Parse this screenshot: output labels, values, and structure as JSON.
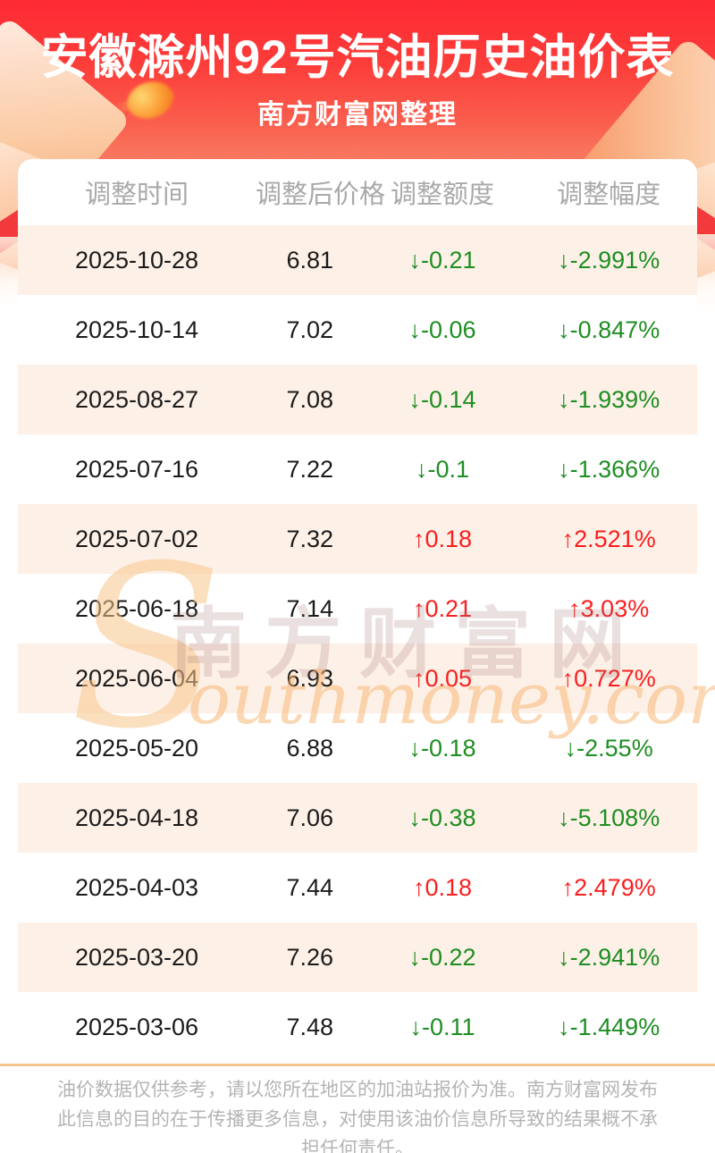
{
  "banner": {
    "title": "安徽滁州92号汽油历史油价表",
    "subtitle": "南方财富网整理"
  },
  "table": {
    "columns": [
      "调整时间",
      "调整后价格",
      "调整额度",
      "调整幅度"
    ],
    "rows": [
      {
        "date": "2025-10-28",
        "price": "6.81",
        "change": "↓-0.21",
        "percent": "↓-2.991%",
        "direction": "down"
      },
      {
        "date": "2025-10-14",
        "price": "7.02",
        "change": "↓-0.06",
        "percent": "↓-0.847%",
        "direction": "down"
      },
      {
        "date": "2025-08-27",
        "price": "7.08",
        "change": "↓-0.14",
        "percent": "↓-1.939%",
        "direction": "down"
      },
      {
        "date": "2025-07-16",
        "price": "7.22",
        "change": "↓-0.1",
        "percent": "↓-1.366%",
        "direction": "down"
      },
      {
        "date": "2025-07-02",
        "price": "7.32",
        "change": "↑0.18",
        "percent": "↑2.521%",
        "direction": "up"
      },
      {
        "date": "2025-06-18",
        "price": "7.14",
        "change": "↑0.21",
        "percent": "↑3.03%",
        "direction": "up"
      },
      {
        "date": "2025-06-04",
        "price": "6.93",
        "change": "↑0.05",
        "percent": "↑0.727%",
        "direction": "up"
      },
      {
        "date": "2025-05-20",
        "price": "6.88",
        "change": "↓-0.18",
        "percent": "↓-2.55%",
        "direction": "down"
      },
      {
        "date": "2025-04-18",
        "price": "7.06",
        "change": "↓-0.38",
        "percent": "↓-5.108%",
        "direction": "down"
      },
      {
        "date": "2025-04-03",
        "price": "7.44",
        "change": "↑0.18",
        "percent": "↑2.479%",
        "direction": "up"
      },
      {
        "date": "2025-03-20",
        "price": "7.26",
        "change": "↓-0.22",
        "percent": "↓-2.941%",
        "direction": "down"
      },
      {
        "date": "2025-03-06",
        "price": "7.48",
        "change": "↓-0.11",
        "percent": "↓-1.449%",
        "direction": "down"
      }
    ]
  },
  "watermark": {
    "initial": "S",
    "cn": "南方财富网",
    "en": "outhmoney.com"
  },
  "footer": {
    "disclaimer": "油价数据仅供参考，请以您所在地区的加油站报价为准。南方财富网发布此信息的目的在于传播更多信息，对使用该油价信息所导致的结果概不承担任何责任。"
  },
  "colors": {
    "banner_red": "#fd2a33",
    "row_alt_bg": "#fdf0e7",
    "up_red": "#f91f1f",
    "down_green": "#1e8e22",
    "divider_orange": "#f5c48d"
  }
}
